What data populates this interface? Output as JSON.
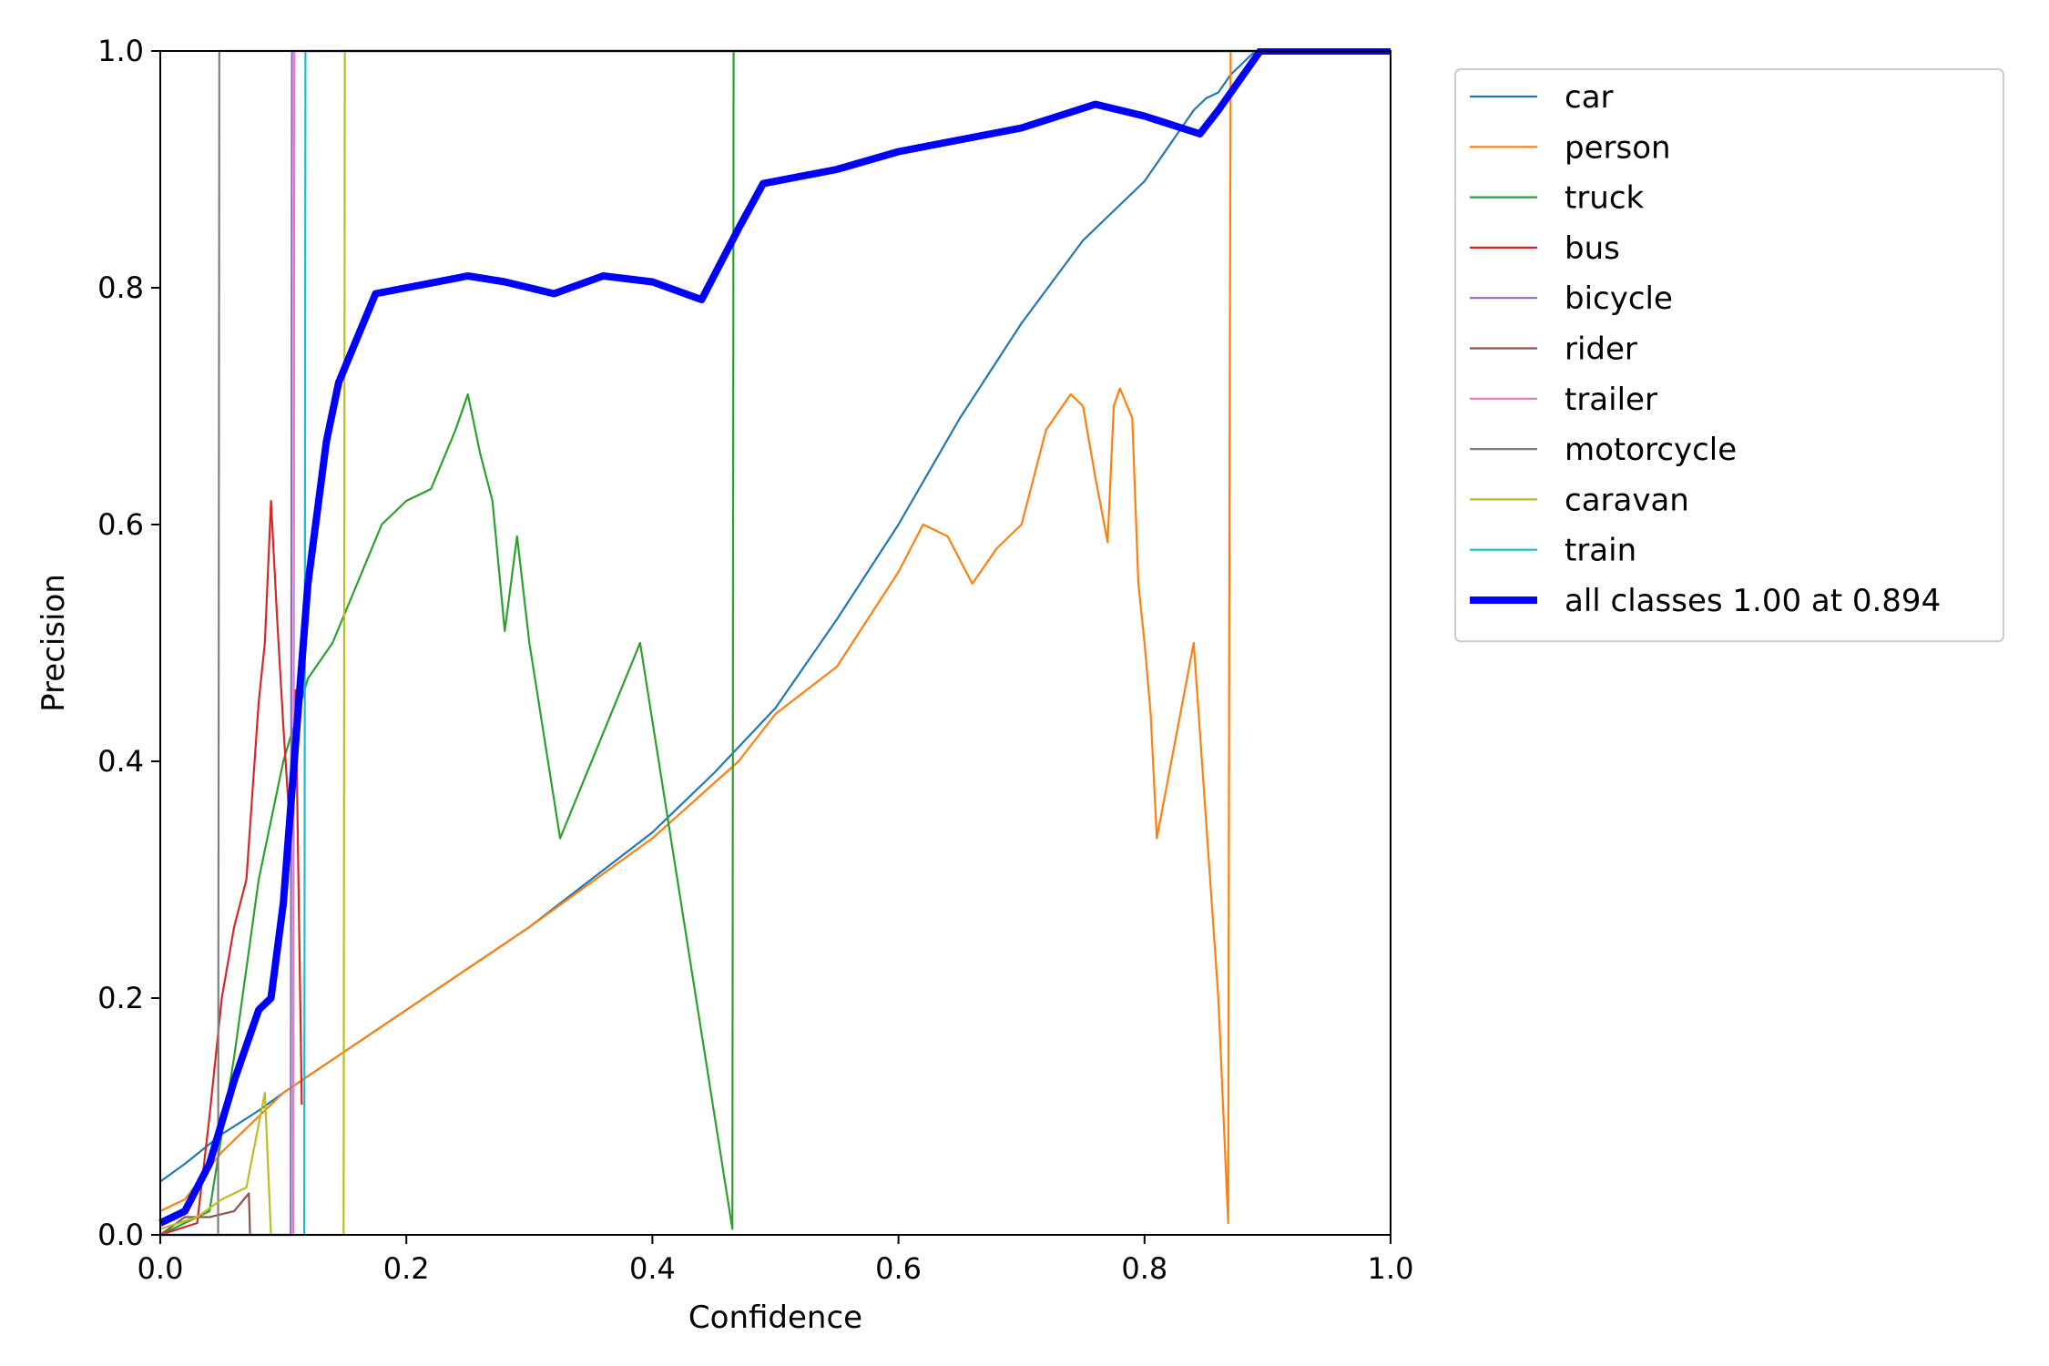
{
  "chart_data": {
    "type": "line",
    "xlabel": "Confidence",
    "ylabel": "Precision",
    "xlim": [
      0.0,
      1.0
    ],
    "ylim": [
      0.0,
      1.0
    ],
    "x_ticks": [
      "0.0",
      "0.2",
      "0.4",
      "0.6",
      "0.8",
      "1.0"
    ],
    "y_ticks": [
      "0.0",
      "0.2",
      "0.4",
      "0.6",
      "0.8",
      "1.0"
    ],
    "grid": false,
    "legend_position": "outside-right-top",
    "series": [
      {
        "name": "car",
        "color": "#1f77b4",
        "x": [
          0.0,
          0.02,
          0.05,
          0.08,
          0.1,
          0.15,
          0.2,
          0.25,
          0.3,
          0.35,
          0.4,
          0.45,
          0.5,
          0.55,
          0.6,
          0.65,
          0.7,
          0.75,
          0.78,
          0.8,
          0.82,
          0.84,
          0.85,
          0.86,
          0.87,
          0.88,
          0.89,
          1.0
        ],
        "y": [
          0.045,
          0.06,
          0.085,
          0.105,
          0.12,
          0.155,
          0.19,
          0.225,
          0.26,
          0.3,
          0.34,
          0.39,
          0.445,
          0.52,
          0.6,
          0.69,
          0.77,
          0.84,
          0.87,
          0.89,
          0.92,
          0.95,
          0.96,
          0.965,
          0.98,
          0.99,
          1.0,
          1.0
        ]
      },
      {
        "name": "person",
        "color": "#ff7f0e",
        "x": [
          0.0,
          0.02,
          0.05,
          0.1,
          0.15,
          0.2,
          0.3,
          0.4,
          0.47,
          0.5,
          0.55,
          0.6,
          0.62,
          0.64,
          0.66,
          0.68,
          0.7,
          0.72,
          0.74,
          0.75,
          0.76,
          0.77,
          0.775,
          0.78,
          0.79,
          0.795,
          0.8,
          0.805,
          0.81,
          0.84,
          0.86,
          0.868,
          0.869,
          0.87,
          0.88,
          1.0
        ],
        "y": [
          0.02,
          0.03,
          0.07,
          0.12,
          0.155,
          0.19,
          0.26,
          0.335,
          0.4,
          0.44,
          0.48,
          0.56,
          0.6,
          0.59,
          0.55,
          0.58,
          0.6,
          0.68,
          0.71,
          0.7,
          0.64,
          0.585,
          0.7,
          0.715,
          0.69,
          0.55,
          0.5,
          0.44,
          0.335,
          0.5,
          0.2,
          0.01,
          0.6,
          1.0,
          1.0,
          1.0
        ]
      },
      {
        "name": "truck",
        "color": "#2ca02c",
        "x": [
          0.0,
          0.04,
          0.06,
          0.08,
          0.1,
          0.12,
          0.14,
          0.16,
          0.18,
          0.2,
          0.22,
          0.24,
          0.25,
          0.26,
          0.27,
          0.28,
          0.29,
          0.3,
          0.325,
          0.39,
          0.465,
          0.466,
          1.0
        ],
        "y": [
          0.0,
          0.02,
          0.15,
          0.3,
          0.4,
          0.47,
          0.5,
          0.55,
          0.6,
          0.62,
          0.63,
          0.68,
          0.71,
          0.66,
          0.62,
          0.51,
          0.59,
          0.5,
          0.335,
          0.5,
          0.005,
          1.0,
          1.0
        ]
      },
      {
        "name": "bus",
        "color": "#d62728",
        "x": [
          0.0,
          0.03,
          0.04,
          0.05,
          0.06,
          0.07,
          0.08,
          0.085,
          0.09,
          0.095,
          0.1,
          0.105,
          0.11,
          0.115
        ],
        "y": [
          0.0,
          0.01,
          0.1,
          0.2,
          0.26,
          0.3,
          0.45,
          0.5,
          0.62,
          0.52,
          0.43,
          0.35,
          0.46,
          0.11
        ]
      },
      {
        "name": "bicycle",
        "color": "#9467bd",
        "x": [
          0.0,
          0.106,
          0.107,
          1.0
        ],
        "y": [
          0.0,
          0.0,
          1.0,
          1.0
        ]
      },
      {
        "name": "rider",
        "color": "#8c564b",
        "x": [
          0.0,
          0.02,
          0.04,
          0.06,
          0.072,
          0.073
        ],
        "y": [
          0.0,
          0.015,
          0.015,
          0.02,
          0.035,
          0.0
        ]
      },
      {
        "name": "trailer",
        "color": "#e377c2",
        "x": [
          0.0,
          0.108,
          0.109,
          1.0
        ],
        "y": [
          0.0,
          0.0,
          1.0,
          1.0
        ]
      },
      {
        "name": "motorcycle",
        "color": "#7f7f7f",
        "x": [
          0.0,
          0.047,
          0.048,
          1.0
        ],
        "y": [
          0.0,
          0.0,
          1.0,
          1.0
        ]
      },
      {
        "name": "caravan",
        "color": "#bcbd22",
        "x": [
          0.0,
          0.03,
          0.05,
          0.07,
          0.085,
          0.09,
          0.091,
          0.149,
          0.15,
          1.0
        ],
        "y": [
          0.005,
          0.015,
          0.03,
          0.04,
          0.12,
          0.0,
          0.0,
          0.0,
          1.0,
          1.0
        ]
      },
      {
        "name": "train",
        "color": "#17becf",
        "x": [
          0.0,
          0.117,
          0.118,
          1.0
        ],
        "y": [
          0.0,
          0.0,
          1.0,
          1.0
        ]
      },
      {
        "name": "all classes 1.00 at 0.894",
        "color": "#0000ff",
        "thick": true,
        "x": [
          0.0,
          0.02,
          0.04,
          0.06,
          0.08,
          0.09,
          0.1,
          0.12,
          0.135,
          0.145,
          0.175,
          0.2,
          0.25,
          0.28,
          0.32,
          0.36,
          0.4,
          0.44,
          0.47,
          0.49,
          0.55,
          0.6,
          0.65,
          0.7,
          0.73,
          0.76,
          0.78,
          0.8,
          0.83,
          0.845,
          0.86,
          0.894,
          1.0
        ],
        "y": [
          0.01,
          0.02,
          0.06,
          0.13,
          0.19,
          0.2,
          0.28,
          0.55,
          0.67,
          0.72,
          0.795,
          0.8,
          0.81,
          0.805,
          0.795,
          0.81,
          0.805,
          0.79,
          0.85,
          0.888,
          0.9,
          0.915,
          0.925,
          0.935,
          0.945,
          0.955,
          0.95,
          0.945,
          0.935,
          0.93,
          0.95,
          1.0,
          1.0
        ]
      }
    ]
  }
}
